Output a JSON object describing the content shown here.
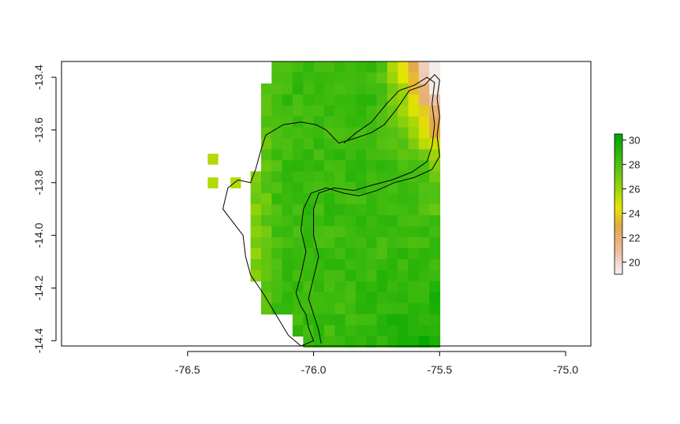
{
  "chart_data": {
    "type": "heatmap",
    "title": "",
    "xlabel": "",
    "ylabel": "",
    "xlim": [
      -77.0,
      -74.9
    ],
    "ylim": [
      -14.42,
      -13.34
    ],
    "x_ticks": [
      "-76.5",
      "-76.0",
      "-75.5",
      "-75.0"
    ],
    "x_tick_values": [
      -76.5,
      -76.0,
      -75.5,
      -75.0
    ],
    "y_ticks": [
      "-13.4",
      "-13.6",
      "-13.8",
      "-14.0",
      "-14.2",
      "-14.4"
    ],
    "y_tick_values": [
      -13.4,
      -13.6,
      -13.8,
      -14.0,
      -14.2,
      -14.4
    ],
    "legend": {
      "position": "right",
      "labels": [
        "30",
        "28",
        "26",
        "24",
        "22",
        "20"
      ],
      "values": [
        30,
        28,
        26,
        24,
        22,
        20
      ],
      "range": [
        19,
        30.5
      ]
    },
    "colors": {
      "scale": [
        "#F2F2F2",
        "#EDBC9E",
        "#E2A846",
        "#E6E600",
        "#9ED50A",
        "#4FC012",
        "#00A600"
      ],
      "stops": [
        19,
        21,
        23,
        24.5,
        26,
        28,
        30.5
      ],
      "boundary": "#000000"
    },
    "grid_notes": "raster cells approx 0.0417 deg; values in deg C style scale",
    "boundary_outer": [
      [
        -76.23,
        -13.75
      ],
      [
        -76.21,
        -13.68
      ],
      [
        -76.19,
        -13.62
      ],
      [
        -76.12,
        -13.58
      ],
      [
        -76.05,
        -13.57
      ],
      [
        -75.99,
        -13.58
      ],
      [
        -75.95,
        -13.6
      ],
      [
        -75.9,
        -13.65
      ],
      [
        -75.83,
        -13.63
      ],
      [
        -75.77,
        -13.61
      ],
      [
        -75.72,
        -13.58
      ],
      [
        -75.67,
        -13.52
      ],
      [
        -75.62,
        -13.45
      ],
      [
        -75.56,
        -13.43
      ],
      [
        -75.52,
        -13.39
      ],
      [
        -75.5,
        -13.41
      ],
      [
        -75.51,
        -13.48
      ],
      [
        -75.5,
        -13.55
      ],
      [
        -75.51,
        -13.62
      ],
      [
        -75.5,
        -13.7
      ],
      [
        -75.53,
        -13.75
      ],
      [
        -75.6,
        -13.78
      ],
      [
        -75.68,
        -13.8
      ],
      [
        -75.75,
        -13.83
      ],
      [
        -75.82,
        -13.85
      ],
      [
        -75.88,
        -13.84
      ],
      [
        -75.95,
        -13.82
      ],
      [
        -76.01,
        -13.84
      ],
      [
        -76.04,
        -13.9
      ],
      [
        -76.05,
        -13.98
      ],
      [
        -76.03,
        -14.06
      ],
      [
        -76.05,
        -14.15
      ],
      [
        -76.07,
        -14.22
      ],
      [
        -76.05,
        -14.27
      ],
      [
        -76.03,
        -14.3
      ],
      [
        -76.02,
        -14.35
      ],
      [
        -76.0,
        -14.4
      ],
      [
        -76.05,
        -14.42
      ],
      [
        -76.1,
        -14.38
      ],
      [
        -76.15,
        -14.3
      ],
      [
        -76.2,
        -14.22
      ],
      [
        -76.25,
        -14.15
      ],
      [
        -76.27,
        -14.08
      ],
      [
        -76.28,
        -14.0
      ],
      [
        -76.32,
        -13.95
      ],
      [
        -76.36,
        -13.9
      ],
      [
        -76.34,
        -13.82
      ],
      [
        -76.3,
        -13.79
      ],
      [
        -76.25,
        -13.8
      ],
      [
        -76.23,
        -13.75
      ]
    ],
    "boundary_inner": [
      [
        -75.88,
        -13.65
      ],
      [
        -75.83,
        -13.61
      ],
      [
        -75.77,
        -13.57
      ],
      [
        -75.71,
        -13.5
      ],
      [
        -75.66,
        -13.45
      ],
      [
        -75.6,
        -13.43
      ],
      [
        -75.55,
        -13.4
      ],
      [
        -75.52,
        -13.42
      ],
      [
        -75.53,
        -13.5
      ],
      [
        -75.52,
        -13.58
      ],
      [
        -75.53,
        -13.66
      ],
      [
        -75.55,
        -13.72
      ],
      [
        -75.61,
        -13.76
      ],
      [
        -75.69,
        -13.79
      ],
      [
        -75.77,
        -13.81
      ],
      [
        -75.84,
        -13.83
      ],
      [
        -75.92,
        -13.82
      ],
      [
        -75.98,
        -13.84
      ],
      [
        -76.0,
        -13.9
      ],
      [
        -76.0,
        -14.0
      ],
      [
        -75.98,
        -14.08
      ],
      [
        -76.0,
        -14.16
      ],
      [
        -76.02,
        -14.24
      ],
      [
        -76.0,
        -14.3
      ],
      [
        -75.98,
        -14.36
      ],
      [
        -75.97,
        -14.41
      ]
    ]
  }
}
